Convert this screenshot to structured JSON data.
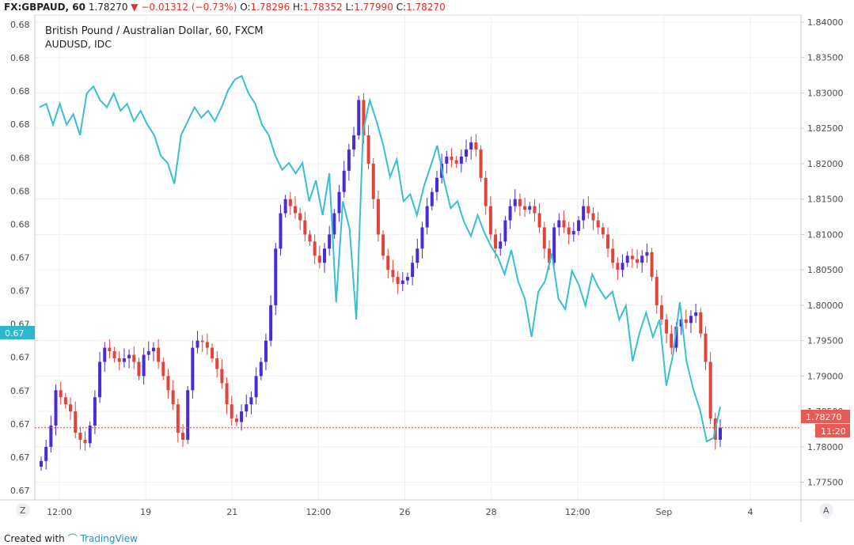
{
  "header": {
    "symbol": "FX:GBPAUD, 60",
    "last": "1.78270",
    "arrow": "▼",
    "change": "−0.01312 (−0.73%)",
    "o_label": "O:",
    "o_val": "1.78296",
    "h_label": "H:",
    "h_val": "1.78352",
    "l_label": "L:",
    "l_val": "1.77990",
    "c_label": "C:",
    "c_val": "1.78270"
  },
  "legend": {
    "main_series": "British Pound / Australian Dollar, 60, FXCM",
    "overlay_series": "AUDUSD, IDC"
  },
  "footer": {
    "created_with": "Created with",
    "brand": "TradingView"
  },
  "buttons": {
    "left": "Z",
    "right": "A"
  },
  "badges": {
    "price": "1.78270",
    "countdown": "11:20",
    "overlay": "0.67"
  },
  "colors": {
    "up": "#4a2bd6",
    "down": "#e0443a",
    "overlay": "#39bed2",
    "grid": "#eef0f3",
    "price_line": "#e04040",
    "badge_overlay": "#2cb7cc",
    "badge_price": "#e85a55"
  },
  "chart_data": {
    "type": "candlestick",
    "x_ticks": [
      "12:00",
      "19",
      "21",
      "12:00",
      "26",
      "28",
      "12:00",
      "Sep",
      "4"
    ],
    "right_axis": {
      "ticks": [
        "1.84000",
        "1.83500",
        "1.83000",
        "1.82500",
        "1.82000",
        "1.81500",
        "1.81000",
        "1.80500",
        "1.80000",
        "1.79500",
        "1.79000",
        "1.78500",
        "1.78000",
        "1.77500"
      ],
      "range": [
        1.7725,
        1.841
      ]
    },
    "left_axis": {
      "ticks": [
        "0.68",
        "0.68",
        "0.68",
        "0.68",
        "0.68",
        "0.68",
        "0.68",
        "0.67",
        "0.67",
        "0.67",
        "0.67",
        "0.67",
        "0.67",
        "0.67",
        "0.67"
      ]
    },
    "series": [
      {
        "name": "GBPAUD",
        "axis": "right",
        "close": [
          1.778,
          1.78,
          1.783,
          1.788,
          1.787,
          1.786,
          1.785,
          1.782,
          1.781,
          1.7805,
          1.783,
          1.787,
          1.792,
          1.794,
          1.7935,
          1.7925,
          1.792,
          1.7925,
          1.793,
          1.792,
          1.79,
          1.793,
          1.7935,
          1.794,
          1.792,
          1.79,
          1.788,
          1.786,
          1.782,
          1.781,
          1.788,
          1.794,
          1.795,
          1.7948,
          1.794,
          1.7925,
          1.791,
          1.789,
          1.786,
          1.784,
          1.7835,
          1.785,
          1.786,
          1.787,
          1.79,
          1.792,
          1.795,
          1.8,
          1.808,
          1.813,
          1.815,
          1.814,
          1.813,
          1.812,
          1.81,
          1.809,
          1.807,
          1.806,
          1.808,
          1.81,
          1.813,
          1.816,
          1.819,
          1.822,
          1.824,
          1.829,
          1.824,
          1.82,
          1.815,
          1.81,
          1.807,
          1.805,
          1.804,
          1.803,
          1.8035,
          1.804,
          1.806,
          1.808,
          1.811,
          1.814,
          1.816,
          1.818,
          1.82,
          1.821,
          1.8205,
          1.82,
          1.821,
          1.822,
          1.823,
          1.822,
          1.818,
          1.814,
          1.81,
          1.808,
          1.809,
          1.812,
          1.814,
          1.815,
          1.814,
          1.8135,
          1.814,
          1.813,
          1.811,
          1.808,
          1.806,
          1.811,
          1.812,
          1.811,
          1.81,
          1.8105,
          1.812,
          1.814,
          1.813,
          1.812,
          1.811,
          1.81,
          1.808,
          1.806,
          1.805,
          1.806,
          1.807,
          1.8065,
          1.806,
          1.807,
          1.8075,
          1.804,
          1.8,
          1.798,
          1.796,
          1.794,
          1.797,
          1.798,
          1.7975,
          1.7985,
          1.799,
          1.796,
          1.792,
          1.784,
          1.781,
          1.7827
        ]
      }
    ]
  }
}
